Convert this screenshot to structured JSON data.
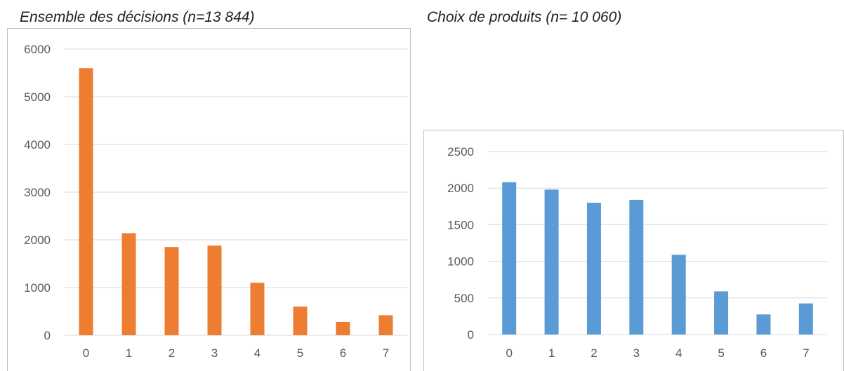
{
  "caption": "",
  "chart_data": [
    {
      "type": "bar",
      "title": "Ensemble des décisions (n=13 844)",
      "categories": [
        "0",
        "1",
        "2",
        "3",
        "4",
        "5",
        "6",
        "7"
      ],
      "values": [
        5600,
        2140,
        1850,
        1880,
        1100,
        600,
        280,
        420
      ],
      "ylim": [
        0,
        6000
      ],
      "yticks": [
        "0",
        "1000",
        "2000",
        "3000",
        "4000",
        "5000",
        "6000"
      ],
      "grid": true,
      "bar_color": "#ed7d31"
    },
    {
      "type": "bar",
      "title": "Choix de produits (n= 10 060)",
      "categories": [
        "0",
        "1",
        "2",
        "3",
        "4",
        "5",
        "6",
        "7"
      ],
      "values": [
        2080,
        1980,
        1800,
        1840,
        1090,
        590,
        275,
        425
      ],
      "ylim": [
        0,
        2500
      ],
      "yticks": [
        "0",
        "500",
        "1000",
        "1500",
        "2000",
        "2500"
      ],
      "grid": true,
      "bar_color": "#5b9bd5"
    }
  ]
}
